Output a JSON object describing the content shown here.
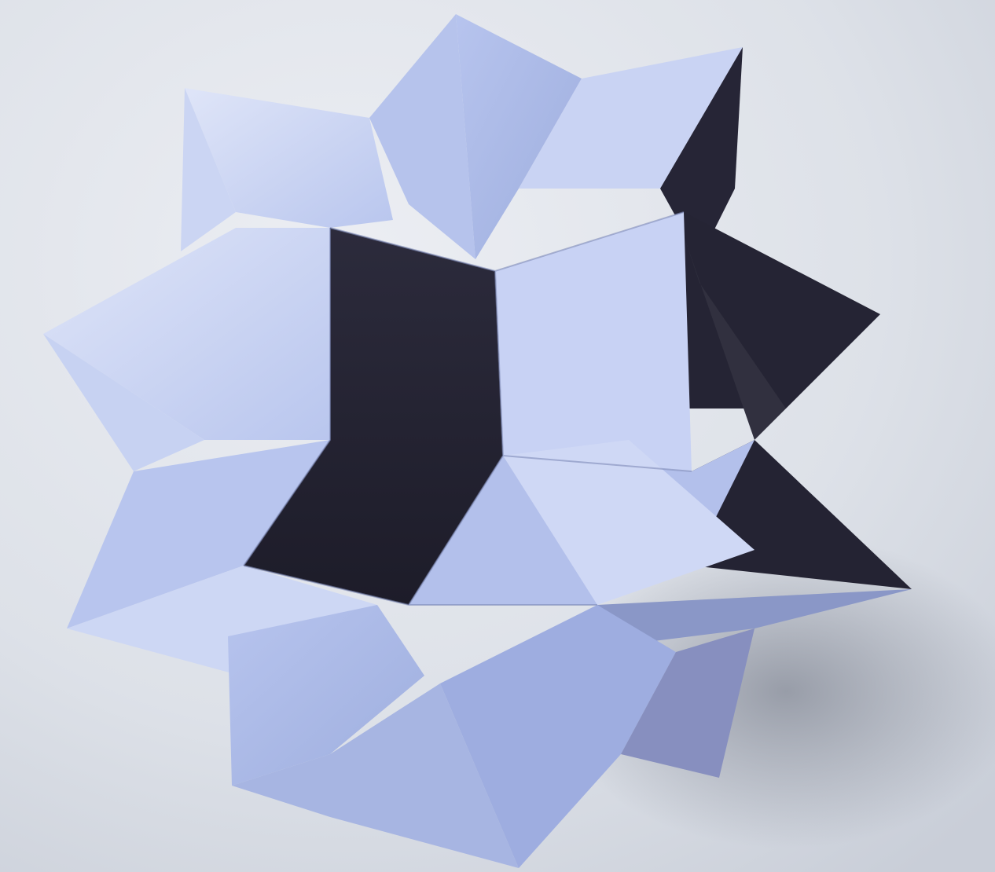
{
  "photo": {
    "subject": "origami-stellated-polyhedron",
    "colors": {
      "background_light": "#e6e9ef",
      "background_mid": "#cfd4dd",
      "shadow": "#a9adb8",
      "paper_light": "#c4d0f0",
      "paper_mid": "#a9b8e4",
      "paper_bright": "#dde3f7",
      "paper_dark": "#2a2a3a",
      "paper_deep": "#1f1e2c",
      "paper_shade": "#8e9ccc"
    }
  }
}
